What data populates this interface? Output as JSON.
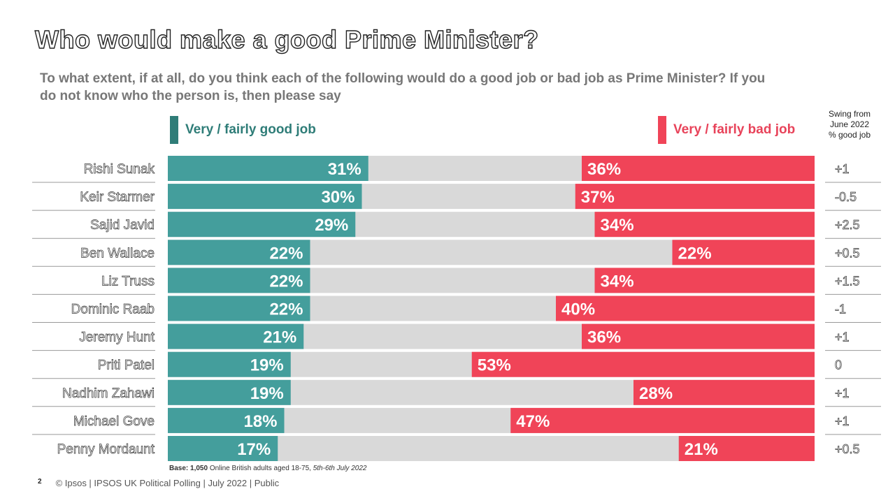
{
  "title": "Who would make a good Prime Minister?",
  "subtitle": "To what extent, if at all, do you think each of the following  would do a good job or bad job as Prime Minister? If you do not know who the person is, then please say",
  "legend": {
    "good_label": "Very  / fairly  good job",
    "bad_label": "Very  / fairly  bad job",
    "good_color": "#449e9c",
    "bad_color": "#f04458",
    "neutral_color": "#d9d9d9"
  },
  "swing_header": [
    "Swing from",
    "June 2022",
    "% good job"
  ],
  "chart_data": {
    "type": "bar",
    "orientation": "horizontal-diverging-stacked",
    "title": "Who would make a good Prime Minister?",
    "xlim": [
      0,
      100
    ],
    "categories": [
      "Rishi Sunak",
      "Keir Starmer",
      "Sajid Javid",
      "Ben Wallace",
      "Liz Truss",
      "Dominic Raab",
      "Jeremy Hunt",
      "Priti Patel",
      "Nadhim Zahawi",
      "Michael Gove",
      "Penny Mordaunt"
    ],
    "series": [
      {
        "name": "Very / fairly good job",
        "values": [
          31,
          30,
          29,
          22,
          22,
          22,
          21,
          19,
          19,
          18,
          17
        ],
        "anchor": "left"
      },
      {
        "name": "Very / fairly bad job",
        "values": [
          36,
          37,
          34,
          22,
          34,
          40,
          36,
          53,
          28,
          47,
          21
        ],
        "anchor": "right"
      }
    ],
    "swing": [
      "+1",
      "-0.5",
      "+2.5",
      "+0.5",
      "+1.5",
      "-1",
      "+1",
      "0",
      "+1",
      "+1",
      "+0.5"
    ],
    "value_suffix": "%"
  },
  "base": {
    "label": "Base:",
    "n": "1,050",
    "text": " Online British adults aged 18-75, ",
    "dates": "5th-6th July 2022"
  },
  "footer": {
    "page": "2",
    "text": "© Ipsos |  IPSOS UK Political Polling | July 2022 | Public"
  }
}
